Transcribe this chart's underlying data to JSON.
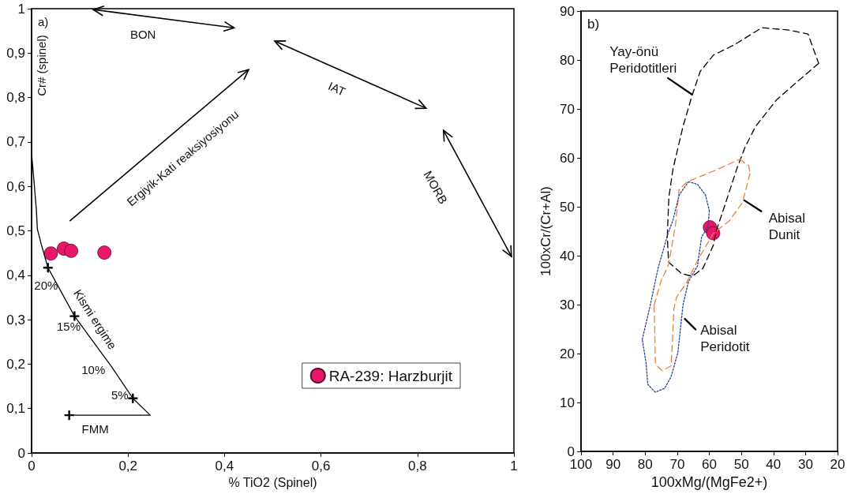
{
  "chart_data": [
    {
      "type": "scatter",
      "xlabel": "% TiO2 (Spinel)",
      "ylabel": "Cr# (spinel)",
      "xlim": [
        0,
        1
      ],
      "ylim": [
        0,
        1
      ],
      "xticks": [
        0,
        {
          "value": 0.2,
          "label": "0,2"
        },
        {
          "value": 0.4,
          "label": "0,4"
        },
        {
          "value": 0.6,
          "label": "0,6"
        },
        {
          "value": 0.8,
          "label": "0,8"
        },
        1
      ],
      "yticks": [
        0,
        {
          "value": 0.1,
          "label": "0,1"
        },
        {
          "value": 0.2,
          "label": "0,2"
        },
        {
          "value": 0.3,
          "label": "0,3"
        },
        {
          "value": 0.4,
          "label": "0,4"
        },
        {
          "value": 0.5,
          "label": "0,5"
        },
        {
          "value": 0.6,
          "label": "0,6"
        },
        {
          "value": 0.7,
          "label": "0,7"
        },
        {
          "value": 0.8,
          "label": "0,8"
        },
        {
          "value": 0.9,
          "label": "0,9"
        },
        1
      ],
      "legend": "bottom right",
      "series": [
        {
          "name": "RA-239: Harzburjit",
          "color": "#e8176a",
          "marker": "circle",
          "x": [
            0.04,
            0.067,
            0.082,
            0.151
          ],
          "values": [
            0.449,
            0.46,
            0.455,
            0.451
          ]
        },
        {
          "type": "line",
          "color": "#000000",
          "marker": "none",
          "line_style": "solid",
          "x": [
            0.0,
            0.0055,
            0.01,
            0.012,
            0.02,
            0.034,
            0.089,
            0.166,
            0.21,
            0.246,
            0.078
          ],
          "values": [
            0.675,
            0.605,
            0.546,
            0.504,
            0.47,
            0.417,
            0.308,
            0.194,
            0.123,
            0.085,
            0.085
          ]
        },
        {
          "color": "#000000",
          "marker": "cross",
          "x": [
            0.034,
            0.089,
            0.21,
            0.078
          ],
          "values": [
            0.417,
            0.308,
            0.123,
            0.085
          ]
        }
      ],
      "annotations": [
        "a)",
        "BON",
        "IAT",
        "MORB",
        "Ergiyik-Kati reaksiyosiyonu",
        "Kismi ergime",
        "20%",
        "15%",
        "10%",
        "5%",
        "FMM"
      ]
    },
    {
      "type": "line",
      "xlabel": "100xMg/(MgFe2+)",
      "ylabel": "100xCr/(Cr+Al)",
      "xlim": [
        100,
        20
      ],
      "ylim": [
        0,
        90
      ],
      "xticks": [
        100,
        90,
        80,
        70,
        60,
        50,
        40,
        30,
        20
      ],
      "yticks": [
        0,
        10,
        20,
        30,
        40,
        50,
        60,
        70,
        80,
        90
      ],
      "series": [
        {
          "color": "#000000",
          "marker": "none",
          "line_style": "dashed",
          "x": [
            73.1,
            72.6,
            71.3,
            68.2,
            65.3,
            62.8,
            58.7,
            52.2,
            43.6,
            34.9,
            29.2,
            25.9,
            null,
            25.9,
            32.5,
            39.1,
            45.6,
            48.9,
            51.4,
            54.6,
            57.9,
            58.7,
            62.0,
            65.3,
            68.6,
            72.7,
            73.1
          ],
          "values": [
            44,
            52,
            57.8,
            66.4,
            72.9,
            77.7,
            81.0,
            83.1,
            86.6,
            86.1,
            85.3,
            79.3,
            null,
            79.3,
            75.6,
            71.8,
            66.4,
            62.1,
            57.8,
            51.4,
            44.9,
            42.2,
            37.4,
            35.8,
            36.3,
            38.7,
            44
          ]
        },
        {
          "color": "#f07f3c",
          "marker": "none",
          "line_style": "dashed",
          "x": [
            50.5,
            47.7,
            47.3,
            null,
            47.3,
            49.7,
            53.8,
            58.7,
            63.7,
            66.9,
            70.2,
            71.0,
            71.9,
            74.7,
            76.8,
            77.2,
            null,
            77.2,
            75.1,
            72.7,
            70.6,
            69.4,
            66.9,
            58.7,
            50.5
          ],
          "values": [
            59.7,
            58.4,
            56.8,
            null,
            56.8,
            50.8,
            47.1,
            44.6,
            39.0,
            34.7,
            31.5,
            29.3,
            17.5,
            16.5,
            17.8,
            29.9,
            null,
            29.9,
            34.7,
            38.2,
            46.0,
            53.5,
            55.1,
            57.3,
            59.7
          ]
        },
        {
          "color": "#2a3f9e",
          "marker": "none",
          "line_style": "dotted",
          "x": [
            66.5,
            63.7,
            61.2,
            60.0,
            null,
            60.0,
            60.4,
            62.4,
            63.7,
            66.5,
            68.2,
            69.8,
            71.9,
            73.9,
            76.8,
            79.2,
            79.7,
            80.9,
            null,
            80.9,
            78.4,
            76.0,
            72.7,
            71.4,
            69.4,
            66.5
          ],
          "values": [
            55.1,
            54.6,
            52.4,
            49.2,
            null,
            49.2,
            46.0,
            43.8,
            37.9,
            34.7,
            29.9,
            20.2,
            15.3,
            12.9,
            12.1,
            13.7,
            18.0,
            22.9,
            null,
            22.9,
            29.9,
            37.4,
            44.9,
            47.1,
            52.4,
            55.1
          ]
        },
        {
          "type": "scatter",
          "color": "#e8176a",
          "marker": "circle",
          "x": [
            59.8,
            58.8
          ],
          "values": [
            45.8,
            44.6
          ]
        }
      ],
      "annotations": [
        "b)",
        "Yay-önü\nPeridotitleri",
        "Abisal\nDunit",
        "Abisal\nPeridotit"
      ]
    }
  ]
}
